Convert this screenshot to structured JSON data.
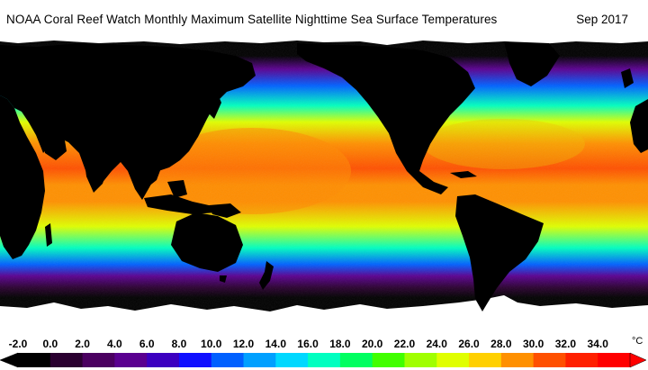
{
  "header": {
    "title": "NOAA Coral Reef Watch Monthly Maximum Satellite Nighttime Sea Surface Temperatures",
    "date": "Sep 2017"
  },
  "legend": {
    "unit": "°C",
    "ticks": [
      "-2.0",
      "0.0",
      "2.0",
      "4.0",
      "6.0",
      "8.0",
      "10.0",
      "12.0",
      "14.0",
      "16.0",
      "18.0",
      "20.0",
      "22.0",
      "24.0",
      "26.0",
      "28.0",
      "30.0",
      "32.0",
      "34.0"
    ],
    "colors": [
      "#000000",
      "#2a0030",
      "#4a0060",
      "#5a0090",
      "#3c00c0",
      "#1010ff",
      "#0060ff",
      "#00a0ff",
      "#00d8ff",
      "#00ffc0",
      "#00ff60",
      "#40ff00",
      "#a0ff00",
      "#e0ff00",
      "#ffd000",
      "#ff9000",
      "#ff5000",
      "#ff2000",
      "#ff0000"
    ]
  },
  "map": {
    "land_color": "#000000",
    "ice_color": "#ffffff",
    "ocean_stops": [
      {
        "lat": 90,
        "temp": -2
      },
      {
        "lat": 78,
        "temp": -2
      },
      {
        "lat": 70,
        "temp": 3
      },
      {
        "lat": 60,
        "temp": 9
      },
      {
        "lat": 48,
        "temp": 16
      },
      {
        "lat": 38,
        "temp": 24
      },
      {
        "lat": 25,
        "temp": 28
      },
      {
        "lat": 10,
        "temp": 29.5
      },
      {
        "lat": 0,
        "temp": 28
      },
      {
        "lat": -10,
        "temp": 27
      },
      {
        "lat": -25,
        "temp": 23
      },
      {
        "lat": -38,
        "temp": 16
      },
      {
        "lat": -48,
        "temp": 9
      },
      {
        "lat": -55,
        "temp": 4
      },
      {
        "lat": -62,
        "temp": 0
      },
      {
        "lat": -68,
        "temp": -2
      },
      {
        "lat": -90,
        "temp": -2
      }
    ]
  }
}
